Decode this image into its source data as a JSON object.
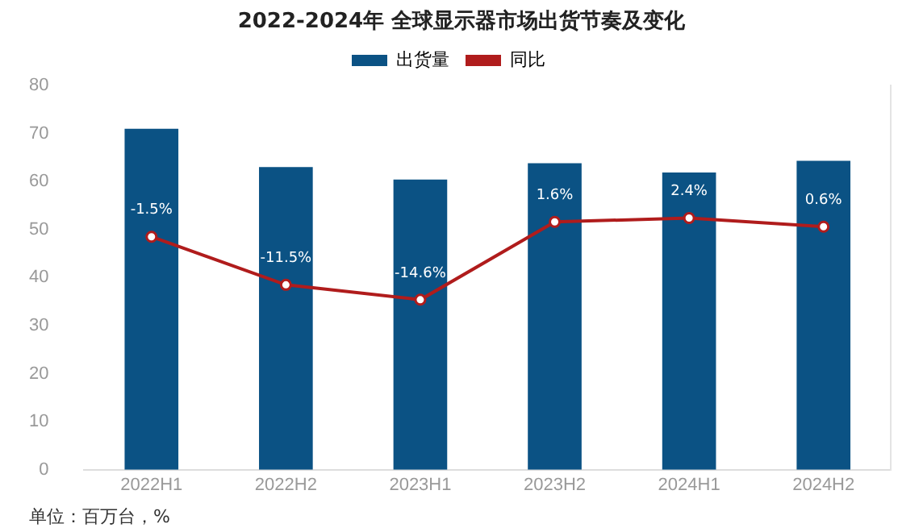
{
  "chart_data": {
    "type": "bar",
    "title": "2022-2024年 全球显示器市场出货节奏及变化",
    "categories": [
      "2022H1",
      "2022H2",
      "2023H1",
      "2023H2",
      "2024H1",
      "2024H2"
    ],
    "series": [
      {
        "name": "出货量",
        "color": "#0b5284",
        "values": [
          71,
          63,
          60.4,
          63.8,
          61.9,
          64.3
        ]
      },
      {
        "name": "同比",
        "type": "line",
        "axis": "y2",
        "color": "#b01c1c",
        "marker": "circle",
        "values": [
          -1.5,
          -11.5,
          -14.6,
          1.6,
          2.4,
          0.6
        ],
        "value_labels": [
          "-1.5%",
          "-11.5%",
          "-14.6%",
          "1.6%",
          "2.4%",
          "0.6%"
        ]
      }
    ],
    "ylim": [
      0,
      80
    ],
    "yticks": [
      0,
      10,
      20,
      30,
      40,
      50,
      60,
      70,
      80
    ],
    "y2lim": [
      -50,
      30
    ],
    "grid": false,
    "legend": "top",
    "annotations": [
      "单位：百万台，%"
    ]
  }
}
